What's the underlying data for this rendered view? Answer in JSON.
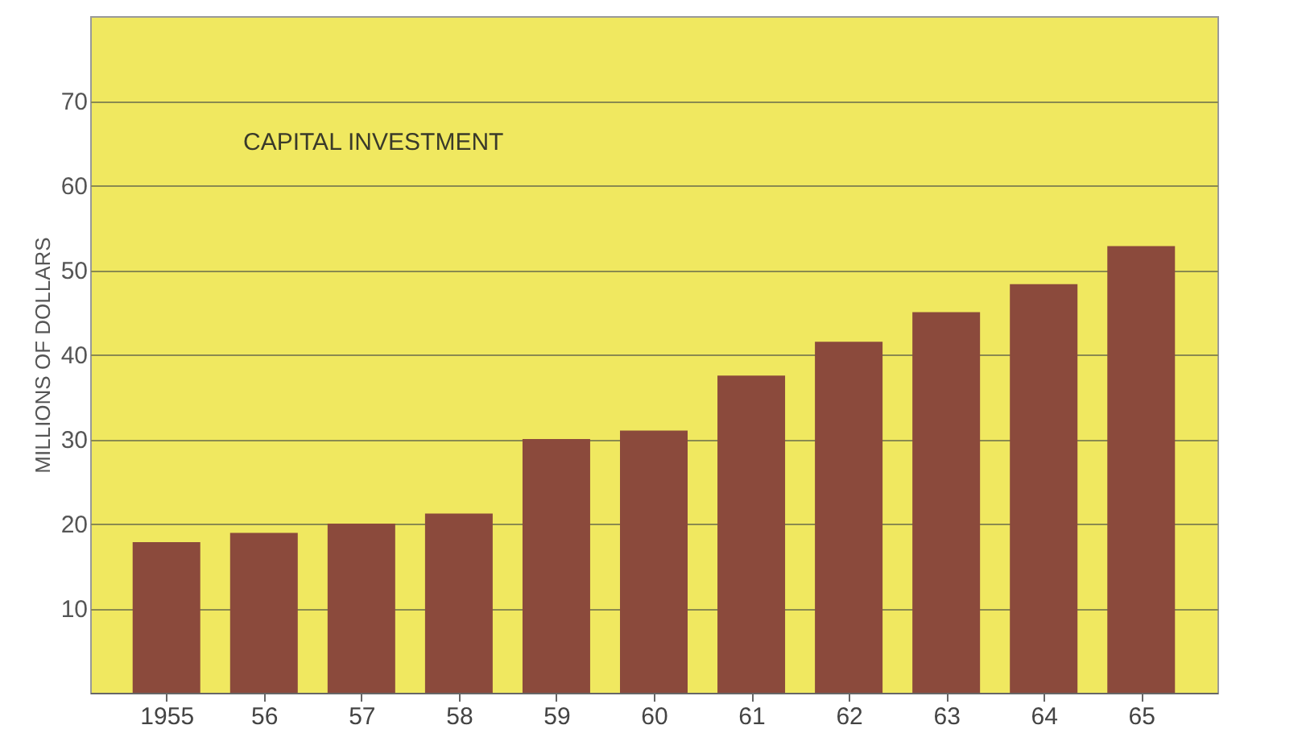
{
  "chart_data": {
    "type": "bar",
    "title": "CAPITAL INVESTMENT",
    "ylabel": "MILLIONS OF DOLLARS",
    "categories": [
      "1955",
      "56",
      "57",
      "58",
      "59",
      "60",
      "61",
      "62",
      "63",
      "64",
      "65"
    ],
    "values": [
      17.8,
      18.9,
      20,
      21.2,
      30,
      31,
      37.5,
      41.5,
      45,
      48.3,
      52.8
    ],
    "color": "#8b4a3c",
    "ylim": [
      0,
      80
    ],
    "yticks": [
      10,
      20,
      30,
      40,
      50,
      60,
      70
    ],
    "grid": "y"
  }
}
